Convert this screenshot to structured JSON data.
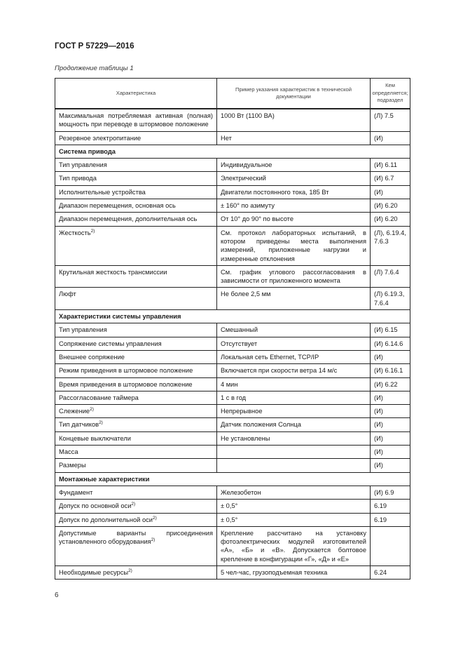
{
  "header": {
    "doc_code": "ГОСТ Р 57229—2016",
    "caption": "Продолжение таблицы 1"
  },
  "table": {
    "columns": [
      "Характеристика",
      "Пример указания характеристик в технической документации",
      "Кем определяется; подраздел"
    ],
    "rows": [
      {
        "c1": "Максимальная потребляемая активная (полная) мощность при переводе в штормовое положение",
        "c2": "1000 Вт (1100 ВА)",
        "c3": "(Л) 7.5"
      },
      {
        "c1": "Резервное электропитание",
        "c2": "Нет",
        "c3": "(И)"
      },
      {
        "section": "Система привода"
      },
      {
        "c1": "Тип управления",
        "c2": "Индивидуальное",
        "c3": "(И) 6.11"
      },
      {
        "c1": "Тип привода",
        "c2": "Электрический",
        "c3": "(И) 6.7"
      },
      {
        "c1": "Исполнительные устройства",
        "c2": "Двигатели постоянного тока, 185 Вт",
        "c3": "(И)"
      },
      {
        "c1": "Диапазон перемещения, основная ось",
        "c2": "± 160° по азимуту",
        "c3": "(И) 6.20"
      },
      {
        "c1": "Диапазон перемещения, дополнительная ось",
        "c2": "От 10° до 90° по высоте",
        "c3": "(И) 6.20"
      },
      {
        "c1": "Жесткость",
        "sup": "2)",
        "c2": "См. протокол лабораторных испытаний, в котором приведены места выполнения измерений, приложенные нагрузки и измеренные отклонения",
        "c3": "(Л), 6.19.4, 7.6.3"
      },
      {
        "c1": "Крутильная жесткость трансмиссии",
        "c2": "См. график углового рассогласования в зависимости от приложенного момента",
        "c3": "(Л) 7.6.4"
      },
      {
        "c1": "Люфт",
        "c2": "Не более 2,5 мм",
        "c3": "(Л) 6.19.3, 7.6.4"
      },
      {
        "section": "Характеристики системы управления"
      },
      {
        "c1": "Тип управления",
        "c2": "Смешанный",
        "c3": "(И) 6.15"
      },
      {
        "c1": "Сопряжение системы управления",
        "c2": "Отсутствует",
        "c3": "(И) 6.14.6"
      },
      {
        "c1": "Внешнее сопряжение",
        "c2": "Локальная сеть Ethernet, TCP/IP",
        "c3": "(И)"
      },
      {
        "c1": "Режим приведения в штормовое положение",
        "c2": "Включается при скорости ветра 14 м/с",
        "c3": "(И) 6.16.1"
      },
      {
        "c1": "Время приведения в штормовое положение",
        "c2": "4 мин",
        "c3": "(И) 6.22"
      },
      {
        "c1": "Рассогласование таймера",
        "c2": "1 с в год",
        "c3": "(И)"
      },
      {
        "c1": "Слежение",
        "sup": "2)",
        "c2": "Непрерывное",
        "c3": "(И)"
      },
      {
        "c1": "Тип датчиков",
        "sup": "2)",
        "c2": "Датчик положения Солнца",
        "c3": "(И)"
      },
      {
        "c1": "Концевые выключатели",
        "c2": "Не установлены",
        "c3": "(И)"
      },
      {
        "c1": "Масса",
        "c2": "",
        "c3": "(И)"
      },
      {
        "c1": "Размеры",
        "c2": "",
        "c3": "(И)"
      },
      {
        "section": "Монтажные характеристики"
      },
      {
        "c1": "Фундамент",
        "c2": "Железобетон",
        "c3": "(И) 6.9"
      },
      {
        "c1": "Допуск по основной оси",
        "sup": "2)",
        "c2": "± 0,5°",
        "c3": "6.19"
      },
      {
        "c1": "Допуск по дополнительной оси",
        "sup": "2)",
        "c2": "± 0,5°",
        "c3": "6.19"
      },
      {
        "c1": "Допустимые варианты присоединения установленного оборудования",
        "sup": "2)",
        "c2": "Крепление рассчитано на установку фотоэлектрических модулей изготовителей «А», «Б» и «В». Допускается болтовое крепление в конфигурации «Г», «Д» и «Е»",
        "c3": ""
      },
      {
        "c1": "Необходимые ресурсы",
        "sup": "2)",
        "c2": "5 чел-час, грузоподъемная техника",
        "c3": "6.24"
      }
    ]
  },
  "footer": {
    "page_number": "6"
  }
}
